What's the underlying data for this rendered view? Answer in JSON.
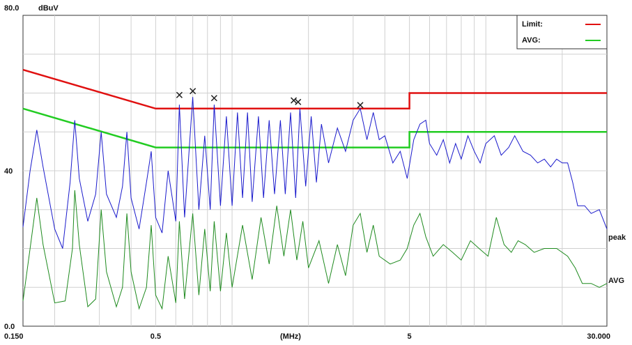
{
  "chart_data": {
    "type": "line",
    "title": "",
    "x_scale": "log",
    "xlim": [
      0.15,
      30
    ],
    "ylim": [
      0,
      80
    ],
    "y_unit": "dBuV",
    "x_unit": "(MHz)",
    "y_ticks": [
      "80.0",
      "40",
      "0.0"
    ],
    "x_ticks": [
      "0.150",
      "0.5",
      "(MHz)",
      "5",
      "30.000"
    ],
    "legend": [
      {
        "name": "Limit:",
        "color": "#e01010"
      },
      {
        "name": "AVG:",
        "color": "#22cc22"
      }
    ],
    "limit_qp": [
      [
        0.15,
        66
      ],
      [
        0.5,
        56
      ],
      [
        5,
        56
      ],
      [
        5,
        60
      ],
      [
        30,
        60
      ]
    ],
    "limit_avg": [
      [
        0.15,
        56
      ],
      [
        0.5,
        46
      ],
      [
        5,
        46
      ],
      [
        5,
        50
      ],
      [
        30,
        50
      ]
    ],
    "peak_markers": [
      {
        "freq": 0.62,
        "level": 59.5
      },
      {
        "freq": 0.7,
        "level": 60.5
      },
      {
        "freq": 0.85,
        "level": 58.7
      },
      {
        "freq": 1.75,
        "level": 58.1
      },
      {
        "freq": 1.82,
        "level": 57.7
      },
      {
        "freq": 3.2,
        "level": 56.9
      }
    ],
    "series": [
      {
        "name": "peak",
        "color": "#1a1acc",
        "points": [
          [
            0.15,
            25.5
          ],
          [
            0.16,
            40
          ],
          [
            0.17,
            50.5
          ],
          [
            0.18,
            41
          ],
          [
            0.2,
            25
          ],
          [
            0.215,
            20
          ],
          [
            0.23,
            37
          ],
          [
            0.24,
            53
          ],
          [
            0.25,
            38
          ],
          [
            0.27,
            27
          ],
          [
            0.29,
            34
          ],
          [
            0.305,
            50
          ],
          [
            0.32,
            34
          ],
          [
            0.35,
            28
          ],
          [
            0.37,
            36
          ],
          [
            0.385,
            50
          ],
          [
            0.4,
            33
          ],
          [
            0.43,
            25
          ],
          [
            0.46,
            37
          ],
          [
            0.48,
            45
          ],
          [
            0.5,
            28
          ],
          [
            0.53,
            24
          ],
          [
            0.56,
            40
          ],
          [
            0.6,
            27
          ],
          [
            0.62,
            57
          ],
          [
            0.65,
            28
          ],
          [
            0.7,
            59
          ],
          [
            0.74,
            30
          ],
          [
            0.78,
            49
          ],
          [
            0.82,
            30
          ],
          [
            0.85,
            57
          ],
          [
            0.9,
            31
          ],
          [
            0.95,
            54
          ],
          [
            1.0,
            31
          ],
          [
            1.05,
            55
          ],
          [
            1.1,
            33
          ],
          [
            1.15,
            55
          ],
          [
            1.2,
            32
          ],
          [
            1.27,
            54
          ],
          [
            1.33,
            33
          ],
          [
            1.4,
            53
          ],
          [
            1.47,
            34
          ],
          [
            1.55,
            53
          ],
          [
            1.62,
            34
          ],
          [
            1.7,
            55
          ],
          [
            1.78,
            33
          ],
          [
            1.85,
            56
          ],
          [
            1.95,
            36
          ],
          [
            2.05,
            54
          ],
          [
            2.15,
            37
          ],
          [
            2.25,
            52
          ],
          [
            2.4,
            42
          ],
          [
            2.6,
            51
          ],
          [
            2.8,
            45
          ],
          [
            3.0,
            53
          ],
          [
            3.2,
            56
          ],
          [
            3.4,
            48
          ],
          [
            3.6,
            55
          ],
          [
            3.8,
            48
          ],
          [
            4.0,
            49
          ],
          [
            4.3,
            42
          ],
          [
            4.6,
            45
          ],
          [
            4.9,
            38
          ],
          [
            5.2,
            48
          ],
          [
            5.5,
            52
          ],
          [
            5.8,
            53
          ],
          [
            6.0,
            47
          ],
          [
            6.4,
            44
          ],
          [
            6.8,
            48
          ],
          [
            7.2,
            42
          ],
          [
            7.6,
            47
          ],
          [
            8.0,
            43
          ],
          [
            8.5,
            49
          ],
          [
            9.0,
            45
          ],
          [
            9.5,
            42
          ],
          [
            10.0,
            47
          ],
          [
            10.8,
            49
          ],
          [
            11.5,
            44
          ],
          [
            12.3,
            46
          ],
          [
            13.0,
            49
          ],
          [
            14.0,
            45
          ],
          [
            15.0,
            44
          ],
          [
            16.0,
            42
          ],
          [
            17.0,
            43
          ],
          [
            18.0,
            41
          ],
          [
            19.0,
            43
          ],
          [
            20.0,
            42
          ],
          [
            21.0,
            42
          ],
          [
            22.0,
            37
          ],
          [
            23.0,
            31
          ],
          [
            24.5,
            31
          ],
          [
            26.0,
            29
          ],
          [
            28.0,
            30
          ],
          [
            30.0,
            25
          ]
        ]
      },
      {
        "name": "AVG",
        "color": "#1e8a1e",
        "points": [
          [
            0.15,
            6.5
          ],
          [
            0.16,
            20
          ],
          [
            0.17,
            33
          ],
          [
            0.18,
            21
          ],
          [
            0.2,
            6
          ],
          [
            0.22,
            6.5
          ],
          [
            0.235,
            20
          ],
          [
            0.24,
            35
          ],
          [
            0.25,
            21
          ],
          [
            0.27,
            5
          ],
          [
            0.29,
            7
          ],
          [
            0.305,
            30
          ],
          [
            0.32,
            14
          ],
          [
            0.35,
            5
          ],
          [
            0.37,
            10
          ],
          [
            0.385,
            29
          ],
          [
            0.4,
            14
          ],
          [
            0.43,
            4.5
          ],
          [
            0.46,
            10
          ],
          [
            0.48,
            26
          ],
          [
            0.5,
            8
          ],
          [
            0.53,
            4.5
          ],
          [
            0.56,
            18
          ],
          [
            0.6,
            6
          ],
          [
            0.62,
            27
          ],
          [
            0.65,
            7
          ],
          [
            0.7,
            29
          ],
          [
            0.74,
            8
          ],
          [
            0.78,
            25
          ],
          [
            0.82,
            9
          ],
          [
            0.85,
            27
          ],
          [
            0.9,
            9
          ],
          [
            0.95,
            24
          ],
          [
            1.0,
            10
          ],
          [
            1.1,
            26
          ],
          [
            1.2,
            12
          ],
          [
            1.3,
            28
          ],
          [
            1.4,
            16
          ],
          [
            1.5,
            31
          ],
          [
            1.6,
            18
          ],
          [
            1.7,
            30
          ],
          [
            1.8,
            17
          ],
          [
            1.9,
            27
          ],
          [
            2.0,
            15
          ],
          [
            2.2,
            22
          ],
          [
            2.4,
            11
          ],
          [
            2.6,
            21
          ],
          [
            2.8,
            13
          ],
          [
            3.0,
            26
          ],
          [
            3.2,
            29
          ],
          [
            3.4,
            19
          ],
          [
            3.6,
            26
          ],
          [
            3.8,
            18
          ],
          [
            4.2,
            16
          ],
          [
            4.6,
            17
          ],
          [
            4.9,
            20
          ],
          [
            5.2,
            26
          ],
          [
            5.5,
            29
          ],
          [
            5.8,
            23
          ],
          [
            6.2,
            18
          ],
          [
            6.8,
            21
          ],
          [
            7.4,
            19
          ],
          [
            8.0,
            17
          ],
          [
            8.7,
            22
          ],
          [
            9.4,
            20
          ],
          [
            10.2,
            18
          ],
          [
            11.0,
            28
          ],
          [
            11.8,
            21
          ],
          [
            12.6,
            19
          ],
          [
            13.4,
            22
          ],
          [
            14.3,
            21
          ],
          [
            15.5,
            19
          ],
          [
            17.0,
            20
          ],
          [
            19.0,
            20
          ],
          [
            21.0,
            18
          ],
          [
            22.5,
            15
          ],
          [
            24.0,
            11
          ],
          [
            26.0,
            11
          ],
          [
            28.0,
            10
          ],
          [
            30.0,
            11
          ]
        ]
      }
    ]
  }
}
